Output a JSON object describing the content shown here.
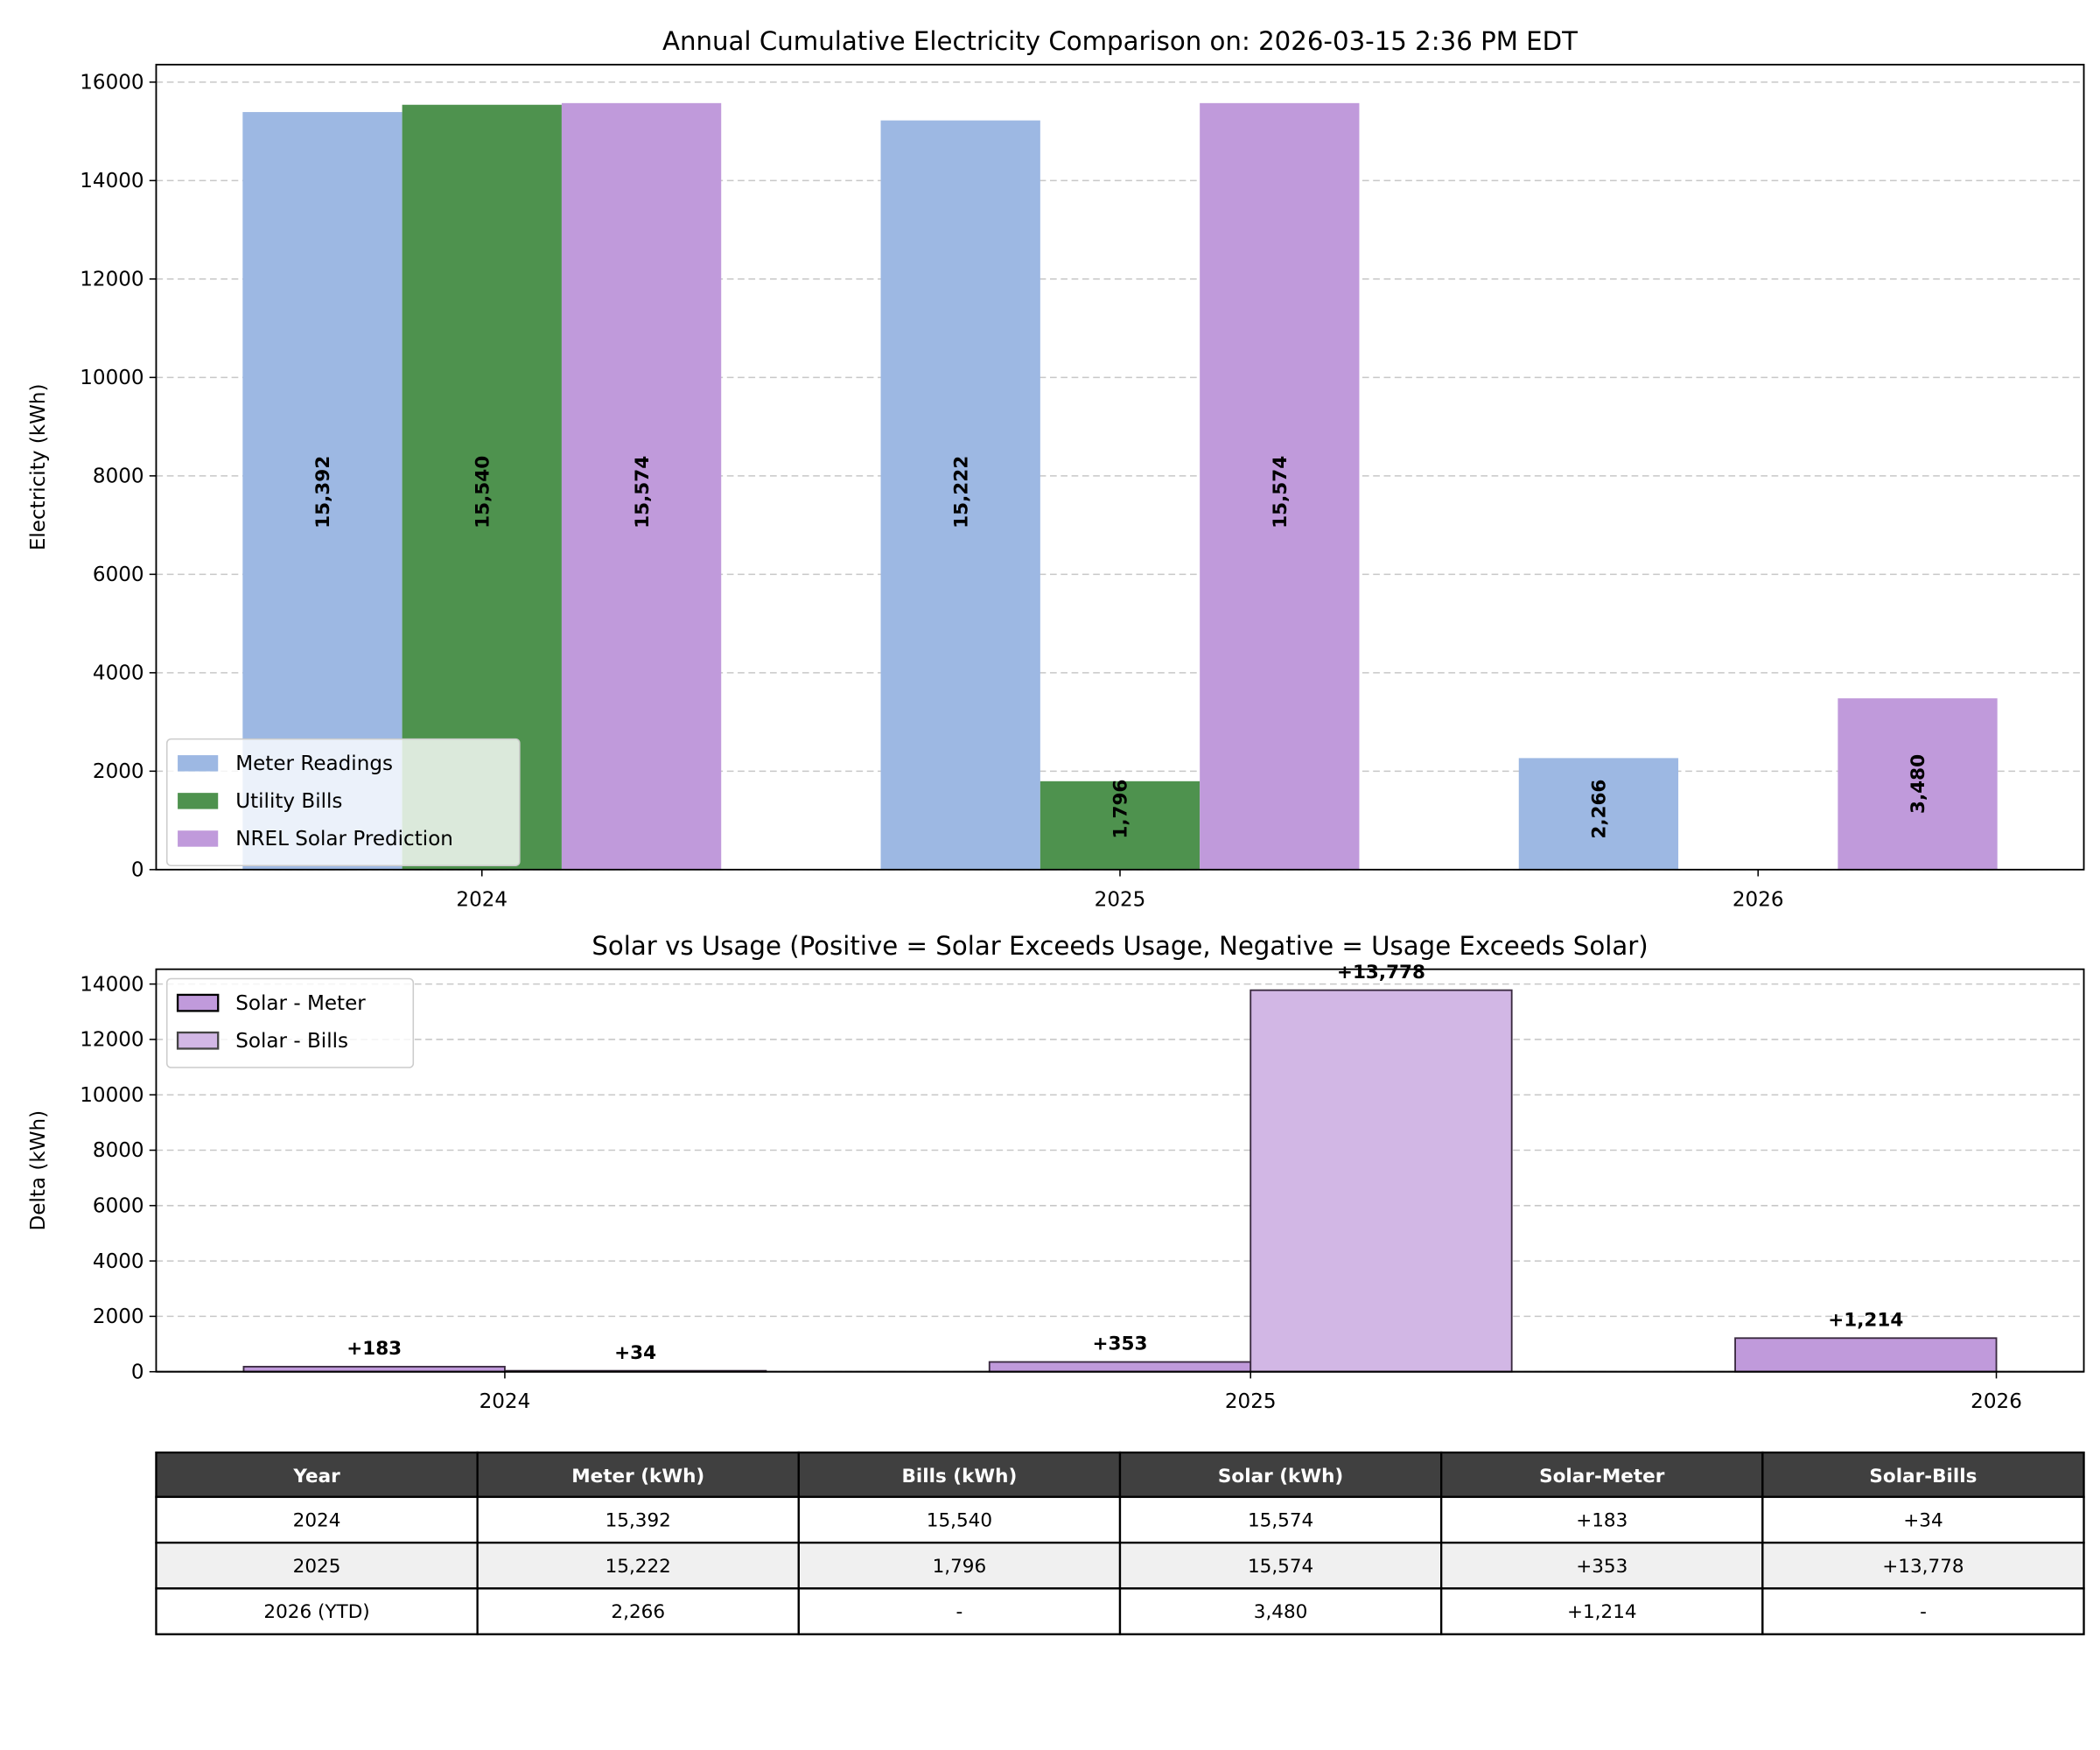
{
  "chart_data": [
    {
      "type": "bar",
      "title": "Annual Cumulative Electricity Comparison on: 2026-03-15 2:36 PM EDT",
      "xlabel": "",
      "ylabel": "Electricity (kWh)",
      "categories": [
        "2024",
        "2025",
        "2026"
      ],
      "ylim": [
        0,
        16356
      ],
      "yticks": [
        0,
        2000,
        4000,
        6000,
        8000,
        10000,
        12000,
        14000,
        16000
      ],
      "grid": "y-dashed",
      "legend_position": "lower-left",
      "series": [
        {
          "name": "Meter Readings",
          "color": "#9db8e3",
          "values": [
            15392,
            15222,
            2266
          ],
          "labels": [
            "15,392",
            "15,222",
            "2,266"
          ]
        },
        {
          "name": "Utility Bills",
          "color": "#4e924e",
          "values": [
            15540,
            1796,
            null
          ],
          "labels": [
            "15,540",
            "1,796",
            null
          ]
        },
        {
          "name": "NREL Solar Prediction",
          "color": "#c09adb",
          "values": [
            15574,
            15574,
            3480
          ],
          "labels": [
            "15,574",
            "15,574",
            "3,480"
          ]
        }
      ]
    },
    {
      "type": "bar",
      "title": "Solar vs Usage (Positive = Solar Exceeds Usage, Negative = Usage Exceeds Solar)",
      "xlabel": "",
      "ylabel": "Delta (kWh)",
      "categories": [
        "2024",
        "2025",
        "2026"
      ],
      "ylim": [
        0,
        14535
      ],
      "yticks": [
        0,
        2000,
        4000,
        6000,
        8000,
        10000,
        12000,
        14000
      ],
      "grid": "y-dashed",
      "legend_position": "upper-left",
      "series": [
        {
          "name": "Solar - Meter",
          "color": "#c09adb",
          "values": [
            183,
            353,
            1214
          ],
          "labels": [
            "+183",
            "+353",
            "+1,214"
          ]
        },
        {
          "name": "Solar - Bills",
          "color": "#d2b7e5",
          "values": [
            34,
            13778,
            null
          ],
          "labels": [
            "+34",
            "+13,778",
            null
          ]
        }
      ]
    },
    {
      "type": "table",
      "columns": [
        "Year",
        "Meter (kWh)",
        "Bills (kWh)",
        "Solar (kWh)",
        "Solar-Meter",
        "Solar-Bills"
      ],
      "rows": [
        [
          "2024",
          "15,392",
          "15,540",
          "15,574",
          "+183",
          "+34"
        ],
        [
          "2025",
          "15,222",
          "1,796",
          "15,574",
          "+353",
          "+13,778"
        ],
        [
          "2026 (YTD)",
          "2,266",
          "-",
          "3,480",
          "+1,214",
          "-"
        ]
      ],
      "header_color": "#404040",
      "alt_row_color": "#f0f0f0"
    }
  ]
}
